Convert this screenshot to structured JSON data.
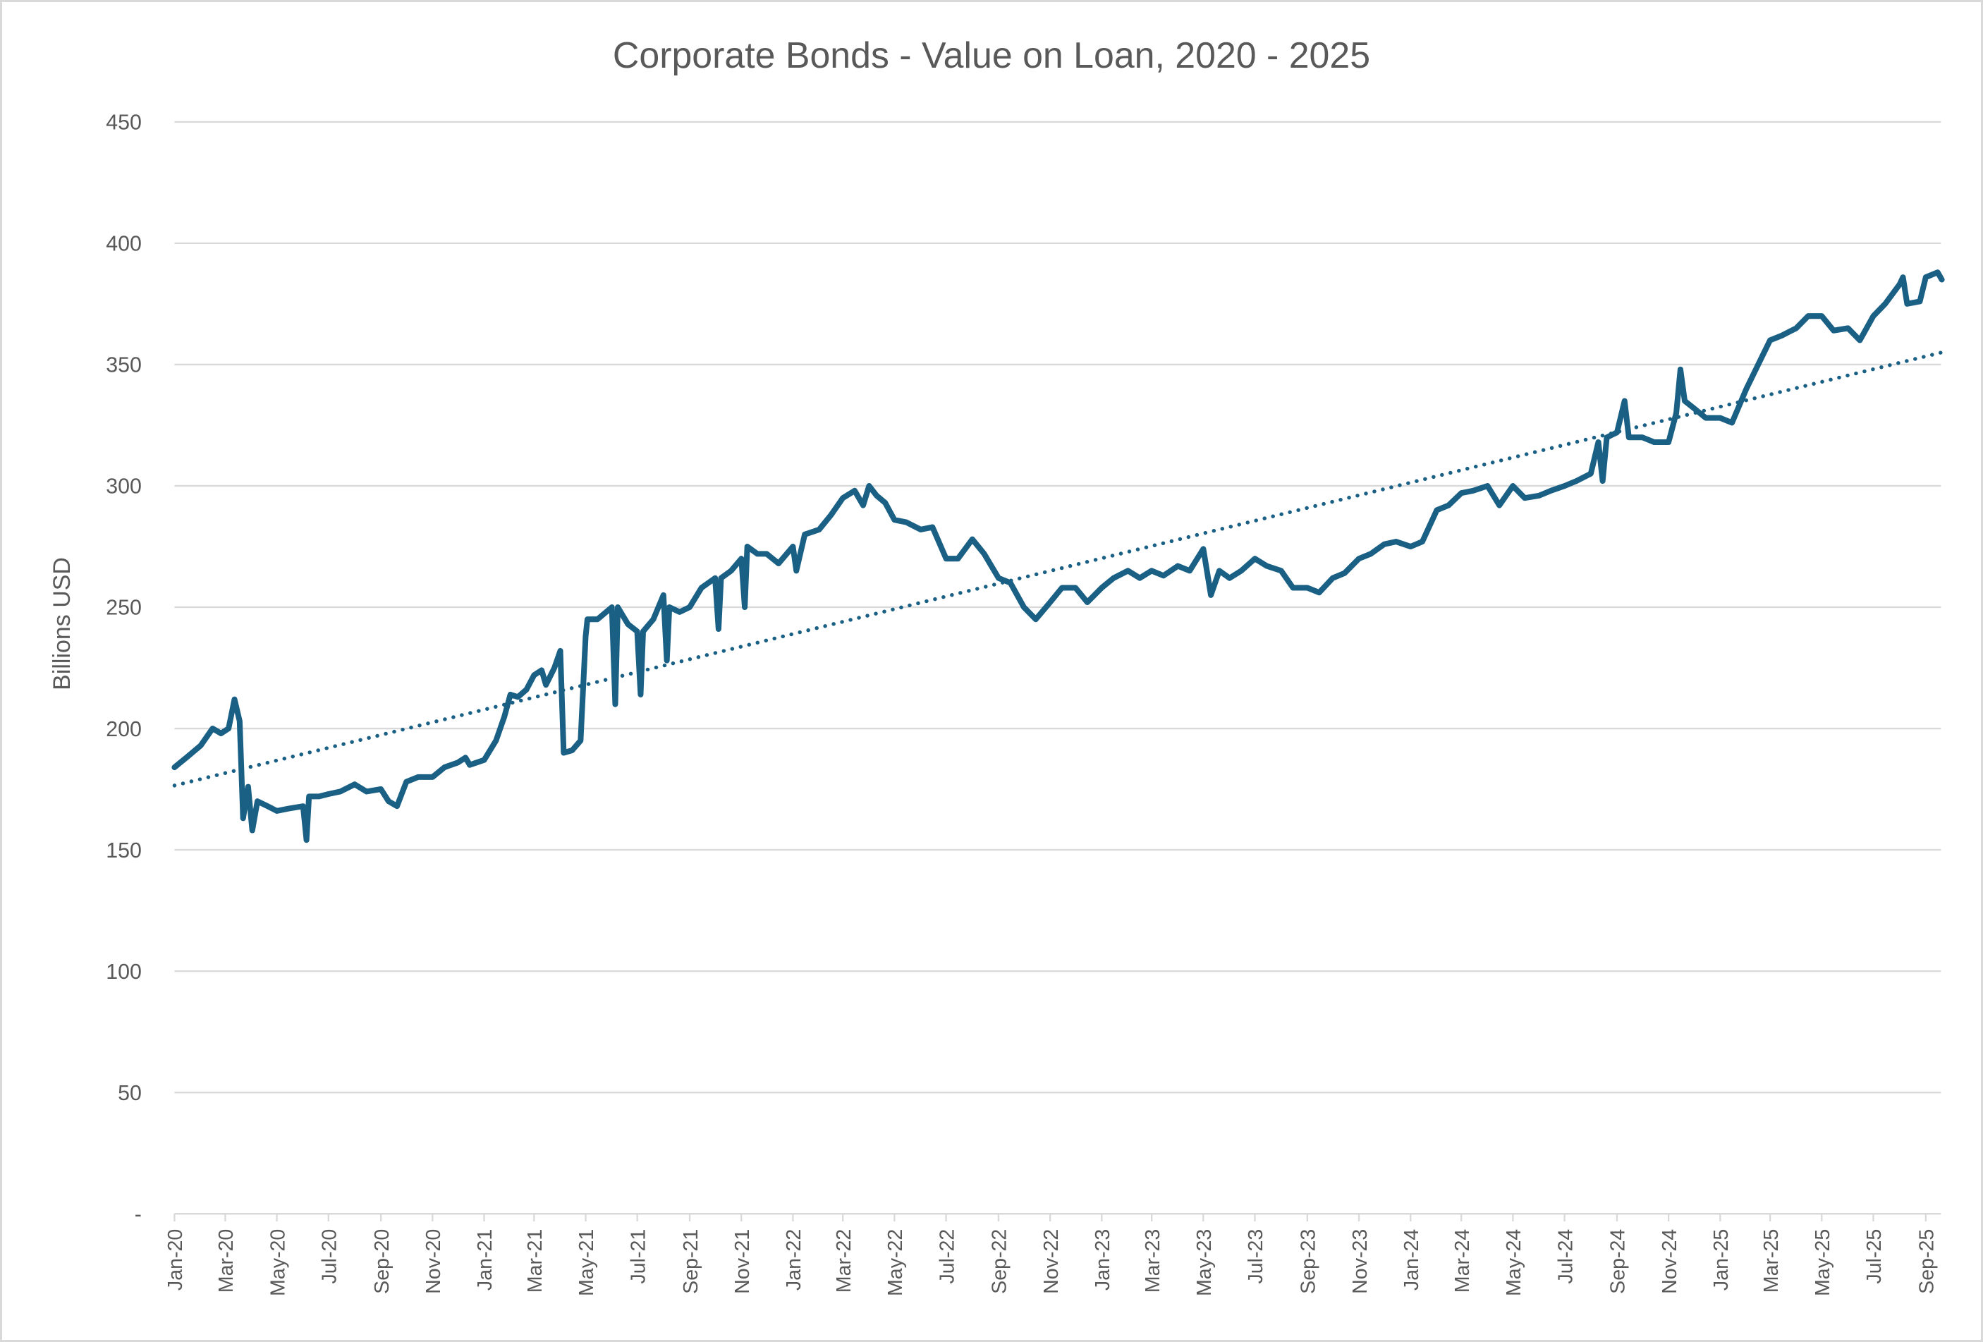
{
  "chart_data": {
    "type": "line",
    "title": "Corporate Bonds - Value on Loan, 2020 - 2025",
    "xlabel": "",
    "ylabel": "Billions USD",
    "ylim": [
      0,
      450
    ],
    "yticks": [
      0,
      50,
      100,
      150,
      200,
      250,
      300,
      350,
      400,
      450
    ],
    "ytick_labels": [
      "-",
      "50",
      "100",
      "150",
      "200",
      "250",
      "300",
      "350",
      "400",
      "450"
    ],
    "xlim": [
      "2020-01-01",
      "2025-09-20"
    ],
    "xtick_labels": [
      "Jan-20",
      "Mar-20",
      "May-20",
      "Jul-20",
      "Sep-20",
      "Nov-20",
      "Jan-21",
      "Mar-21",
      "May-21",
      "Jul-21",
      "Sep-21",
      "Nov-21",
      "Jan-22",
      "Mar-22",
      "May-22",
      "Jul-22",
      "Sep-22",
      "Nov-22",
      "Jan-23",
      "Mar-23",
      "May-23",
      "Jul-23",
      "Sep-23",
      "Nov-23",
      "Jan-24",
      "Mar-24",
      "May-24",
      "Jul-24",
      "Sep-24",
      "Nov-24",
      "Jan-25",
      "Mar-25",
      "May-25",
      "Jul-25",
      "Sep-25"
    ],
    "grid": true,
    "legend": "none",
    "colors": {
      "series": "#1a6085",
      "trendline": "#1a6085",
      "grid": "#d9d9d9",
      "text": "#595959"
    },
    "series": [
      {
        "style": "solid",
        "points": [
          [
            "2020-01-01",
            184
          ],
          [
            "2020-01-15",
            188
          ],
          [
            "2020-02-01",
            193
          ],
          [
            "2020-02-15",
            200
          ],
          [
            "2020-02-25",
            198
          ],
          [
            "2020-03-05",
            200
          ],
          [
            "2020-03-12",
            212
          ],
          [
            "2020-03-18",
            203
          ],
          [
            "2020-03-22",
            163
          ],
          [
            "2020-03-28",
            176
          ],
          [
            "2020-04-02",
            158
          ],
          [
            "2020-04-08",
            170
          ],
          [
            "2020-04-20",
            168
          ],
          [
            "2020-05-01",
            166
          ],
          [
            "2020-05-15",
            167
          ],
          [
            "2020-06-01",
            168
          ],
          [
            "2020-06-05",
            154
          ],
          [
            "2020-06-08",
            172
          ],
          [
            "2020-06-20",
            172
          ],
          [
            "2020-07-01",
            173
          ],
          [
            "2020-07-15",
            174
          ],
          [
            "2020-08-01",
            177
          ],
          [
            "2020-08-15",
            174
          ],
          [
            "2020-09-01",
            175
          ],
          [
            "2020-09-10",
            170
          ],
          [
            "2020-09-20",
            168
          ],
          [
            "2020-10-01",
            178
          ],
          [
            "2020-10-15",
            180
          ],
          [
            "2020-11-01",
            180
          ],
          [
            "2020-11-15",
            184
          ],
          [
            "2020-12-01",
            186
          ],
          [
            "2020-12-10",
            188
          ],
          [
            "2020-12-15",
            185
          ],
          [
            "2021-01-01",
            187
          ],
          [
            "2021-01-15",
            195
          ],
          [
            "2021-01-25",
            205
          ],
          [
            "2021-02-01",
            214
          ],
          [
            "2021-02-10",
            213
          ],
          [
            "2021-02-20",
            216
          ],
          [
            "2021-03-01",
            222
          ],
          [
            "2021-03-10",
            224
          ],
          [
            "2021-03-15",
            218
          ],
          [
            "2021-03-25",
            225
          ],
          [
            "2021-04-01",
            232
          ],
          [
            "2021-04-05",
            190
          ],
          [
            "2021-04-15",
            191
          ],
          [
            "2021-04-25",
            195
          ],
          [
            "2021-05-01",
            238
          ],
          [
            "2021-05-03",
            245
          ],
          [
            "2021-05-15",
            245
          ],
          [
            "2021-06-01",
            250
          ],
          [
            "2021-06-05",
            210
          ],
          [
            "2021-06-08",
            250
          ],
          [
            "2021-06-20",
            243
          ],
          [
            "2021-07-01",
            240
          ],
          [
            "2021-07-05",
            214
          ],
          [
            "2021-07-08",
            240
          ],
          [
            "2021-07-20",
            245
          ],
          [
            "2021-08-01",
            255
          ],
          [
            "2021-08-05",
            228
          ],
          [
            "2021-08-08",
            250
          ],
          [
            "2021-08-20",
            248
          ],
          [
            "2021-09-01",
            250
          ],
          [
            "2021-09-15",
            258
          ],
          [
            "2021-10-01",
            262
          ],
          [
            "2021-10-05",
            241
          ],
          [
            "2021-10-08",
            262
          ],
          [
            "2021-10-20",
            265
          ],
          [
            "2021-11-01",
            270
          ],
          [
            "2021-11-05",
            250
          ],
          [
            "2021-11-08",
            275
          ],
          [
            "2021-11-20",
            272
          ],
          [
            "2021-12-01",
            272
          ],
          [
            "2021-12-15",
            268
          ],
          [
            "2022-01-01",
            275
          ],
          [
            "2022-01-05",
            265
          ],
          [
            "2022-01-15",
            280
          ],
          [
            "2022-02-01",
            282
          ],
          [
            "2022-02-15",
            288
          ],
          [
            "2022-03-01",
            295
          ],
          [
            "2022-03-15",
            298
          ],
          [
            "2022-03-25",
            292
          ],
          [
            "2022-04-01",
            300
          ],
          [
            "2022-04-10",
            296
          ],
          [
            "2022-04-20",
            293
          ],
          [
            "2022-05-01",
            286
          ],
          [
            "2022-05-15",
            285
          ],
          [
            "2022-06-01",
            282
          ],
          [
            "2022-06-15",
            283
          ],
          [
            "2022-07-01",
            270
          ],
          [
            "2022-07-15",
            270
          ],
          [
            "2022-08-01",
            278
          ],
          [
            "2022-08-15",
            272
          ],
          [
            "2022-09-01",
            262
          ],
          [
            "2022-09-15",
            260
          ],
          [
            "2022-10-01",
            250
          ],
          [
            "2022-10-15",
            245
          ],
          [
            "2022-11-01",
            252
          ],
          [
            "2022-11-15",
            258
          ],
          [
            "2022-12-01",
            258
          ],
          [
            "2022-12-15",
            252
          ],
          [
            "2023-01-01",
            258
          ],
          [
            "2023-01-15",
            262
          ],
          [
            "2023-02-01",
            265
          ],
          [
            "2023-02-15",
            262
          ],
          [
            "2023-03-01",
            265
          ],
          [
            "2023-03-15",
            263
          ],
          [
            "2023-04-01",
            267
          ],
          [
            "2023-04-15",
            265
          ],
          [
            "2023-05-01",
            274
          ],
          [
            "2023-05-10",
            255
          ],
          [
            "2023-05-20",
            265
          ],
          [
            "2023-06-01",
            262
          ],
          [
            "2023-06-15",
            265
          ],
          [
            "2023-07-01",
            270
          ],
          [
            "2023-07-15",
            267
          ],
          [
            "2023-08-01",
            265
          ],
          [
            "2023-08-15",
            258
          ],
          [
            "2023-09-01",
            258
          ],
          [
            "2023-09-15",
            256
          ],
          [
            "2023-10-01",
            262
          ],
          [
            "2023-10-15",
            264
          ],
          [
            "2023-11-01",
            270
          ],
          [
            "2023-11-15",
            272
          ],
          [
            "2023-12-01",
            276
          ],
          [
            "2023-12-15",
            277
          ],
          [
            "2024-01-01",
            275
          ],
          [
            "2024-01-15",
            277
          ],
          [
            "2024-02-01",
            290
          ],
          [
            "2024-02-15",
            292
          ],
          [
            "2024-03-01",
            297
          ],
          [
            "2024-03-15",
            298
          ],
          [
            "2024-04-01",
            300
          ],
          [
            "2024-04-15",
            292
          ],
          [
            "2024-05-01",
            300
          ],
          [
            "2024-05-15",
            295
          ],
          [
            "2024-06-01",
            296
          ],
          [
            "2024-06-15",
            298
          ],
          [
            "2024-07-01",
            300
          ],
          [
            "2024-07-15",
            302
          ],
          [
            "2024-08-01",
            305
          ],
          [
            "2024-08-10",
            318
          ],
          [
            "2024-08-15",
            302
          ],
          [
            "2024-08-20",
            320
          ],
          [
            "2024-09-01",
            322
          ],
          [
            "2024-09-10",
            335
          ],
          [
            "2024-09-15",
            320
          ],
          [
            "2024-10-01",
            320
          ],
          [
            "2024-10-15",
            318
          ],
          [
            "2024-11-01",
            318
          ],
          [
            "2024-11-10",
            330
          ],
          [
            "2024-11-15",
            348
          ],
          [
            "2024-11-20",
            335
          ],
          [
            "2024-12-01",
            332
          ],
          [
            "2024-12-15",
            328
          ],
          [
            "2025-01-01",
            328
          ],
          [
            "2025-01-15",
            326
          ],
          [
            "2025-02-01",
            340
          ],
          [
            "2025-02-15",
            350
          ],
          [
            "2025-03-01",
            360
          ],
          [
            "2025-03-15",
            362
          ],
          [
            "2025-04-01",
            365
          ],
          [
            "2025-04-15",
            370
          ],
          [
            "2025-05-01",
            370
          ],
          [
            "2025-05-15",
            364
          ],
          [
            "2025-06-01",
            365
          ],
          [
            "2025-06-15",
            360
          ],
          [
            "2025-07-01",
            370
          ],
          [
            "2025-07-15",
            375
          ],
          [
            "2025-08-01",
            383
          ],
          [
            "2025-08-05",
            386
          ],
          [
            "2025-08-10",
            375
          ],
          [
            "2025-08-25",
            376
          ],
          [
            "2025-09-01",
            386
          ],
          [
            "2025-09-15",
            388
          ],
          [
            "2025-09-20",
            385
          ]
        ]
      }
    ],
    "trendline": {
      "type": "linear",
      "style": "dotted",
      "points": [
        [
          "2020-01-01",
          176.5
        ],
        [
          "2025-09-20",
          355
        ]
      ]
    }
  }
}
